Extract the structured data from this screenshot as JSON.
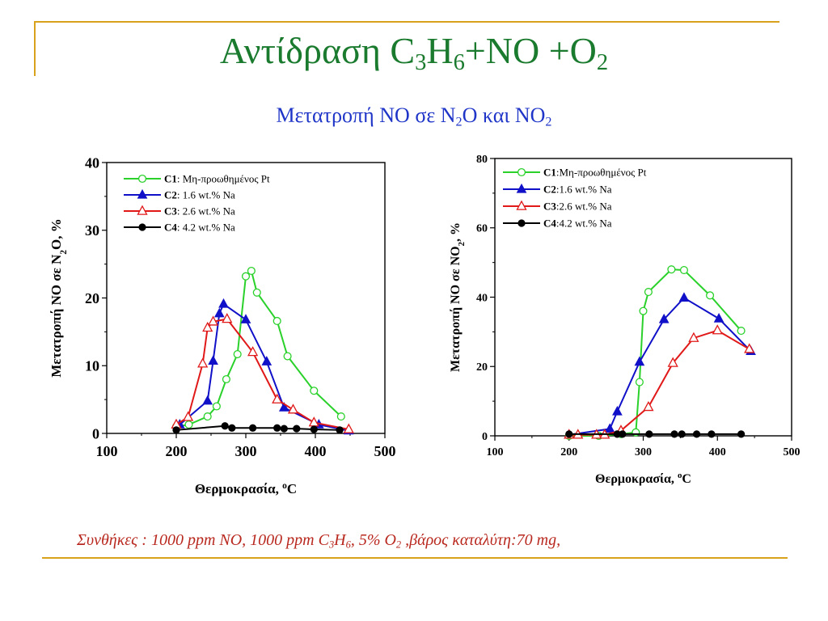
{
  "title": {
    "main": "Αντίδραση C",
    "sub1": "3",
    "mid": "H",
    "sub2": "6",
    "tail": "+NO +O",
    "sub3": "2"
  },
  "subtitle": {
    "a": "Μετατροπή NO σε  N",
    "sub1": "2",
    "b": "O και NO",
    "sub2": "2"
  },
  "footnote": {
    "a": "Συνθήκες : 1000 ppm NO, 1000 ppm C",
    "sub1": "3",
    "b": "H",
    "sub2": "6",
    "c": ", 5% O",
    "sub3": "2",
    "d": " ,βάρος καταλύτη:70 mg,"
  },
  "colors": {
    "accent_rule": "#d8a21c",
    "title": "#1a7a2e",
    "subtitle": "#1f35c8",
    "footnote": "#b8281e",
    "C1": "#2ad12a",
    "C2": "#1010c8",
    "C3": "#e01818",
    "C4": "#000000"
  },
  "chart_data": [
    {
      "type": "line",
      "xlabel": {
        "a": "Θερμοκρασία, ",
        "sup": "o",
        "b": "C"
      },
      "ylabel": {
        "a": "Μετατροπή NO σε N",
        "sub": "2",
        "b": "O, %"
      },
      "xlim": [
        100,
        500
      ],
      "ylim": [
        0,
        40
      ],
      "xticks": [
        "100",
        "200",
        "300",
        "400",
        "500"
      ],
      "yticks": [
        "0",
        "10",
        "20",
        "30",
        "40"
      ],
      "legend_position": "top-left",
      "series": [
        {
          "key": "C1",
          "name": "C1",
          "desc": ": Μη-προωθημένος Pt",
          "marker": "circle-open",
          "x": [
            200,
            218,
            245,
            258,
            272,
            288,
            300,
            308,
            316,
            345,
            360,
            398,
            437
          ],
          "y": [
            1.0,
            1.3,
            2.5,
            4.0,
            8.0,
            11.7,
            23.2,
            24.0,
            20.8,
            16.6,
            11.4,
            6.3,
            2.5
          ]
        },
        {
          "key": "C2",
          "name": "C2",
          "desc": ": 1.6 wt.% Na",
          "marker": "triangle-filled",
          "x": [
            205,
            245,
            253,
            262,
            268,
            300,
            330,
            355,
            405,
            448
          ],
          "y": [
            1.3,
            4.8,
            10.7,
            17.7,
            19.1,
            16.8,
            10.6,
            3.8,
            1.3,
            0.4
          ]
        },
        {
          "key": "C3",
          "name": "C3",
          "desc": ": 2.6 wt.% Na",
          "marker": "triangle-open",
          "x": [
            200,
            217,
            238,
            245,
            253,
            273,
            310,
            345,
            368,
            398,
            448
          ],
          "y": [
            1.3,
            2.4,
            10.3,
            15.6,
            16.5,
            16.9,
            12.0,
            5.0,
            3.5,
            1.6,
            0.6
          ]
        },
        {
          "key": "C4",
          "name": "C4",
          "desc": ": 4.2 wt.% Na",
          "marker": "circle-filled",
          "x": [
            200,
            270,
            280,
            310,
            345,
            355,
            373,
            398,
            435
          ],
          "y": [
            0.5,
            1.1,
            0.8,
            0.8,
            0.8,
            0.7,
            0.7,
            0.6,
            0.5
          ]
        }
      ]
    },
    {
      "type": "line",
      "xlabel": {
        "a": "Θερμοκρασία, ",
        "sup": "o",
        "b": "C"
      },
      "ylabel": {
        "a": "Μετατροπή NO σε NO",
        "sub": "2",
        "b": ", %"
      },
      "xlim": [
        100,
        500
      ],
      "ylim": [
        0,
        80
      ],
      "xticks": [
        "100",
        "200",
        "300",
        "400",
        "500"
      ],
      "yticks": [
        "0",
        "20",
        "40",
        "60",
        "80"
      ],
      "legend_position": "top-left",
      "series": [
        {
          "key": "C1",
          "name": "C1",
          "desc": ":Μη-προωθημένος Pt",
          "marker": "circle-open",
          "x": [
            200,
            240,
            270,
            290,
            295,
            300,
            307,
            338,
            355,
            390,
            432
          ],
          "y": [
            0,
            0,
            0.5,
            1.0,
            15.5,
            36.0,
            41.5,
            48.0,
            47.8,
            40.5,
            30.3
          ]
        },
        {
          "key": "C2",
          "name": "C2",
          "desc": ":1.6 wt.% Na",
          "marker": "triangle-filled",
          "x": [
            200,
            255,
            265,
            295,
            328,
            355,
            402,
            445
          ],
          "y": [
            0.3,
            2.0,
            7.0,
            21.3,
            33.6,
            39.8,
            33.8,
            24.4
          ]
        },
        {
          "key": "C3",
          "name": "C3",
          "desc": ":2.6 wt.% Na",
          "marker": "triangle-open",
          "x": [
            200,
            212,
            237,
            248,
            270,
            307,
            340,
            368,
            400,
            443
          ],
          "y": [
            0.3,
            0.3,
            0.3,
            0.3,
            1.5,
            8.3,
            21.0,
            28.2,
            30.4,
            25.0
          ]
        },
        {
          "key": "C4",
          "name": "C4",
          "desc": ":4.2 wt.% Na",
          "marker": "circle-filled",
          "x": [
            200,
            265,
            272,
            308,
            342,
            352,
            372,
            392,
            432
          ],
          "y": [
            0.5,
            0.5,
            0.5,
            0.5,
            0.5,
            0.5,
            0.5,
            0.5,
            0.5
          ]
        }
      ]
    }
  ]
}
